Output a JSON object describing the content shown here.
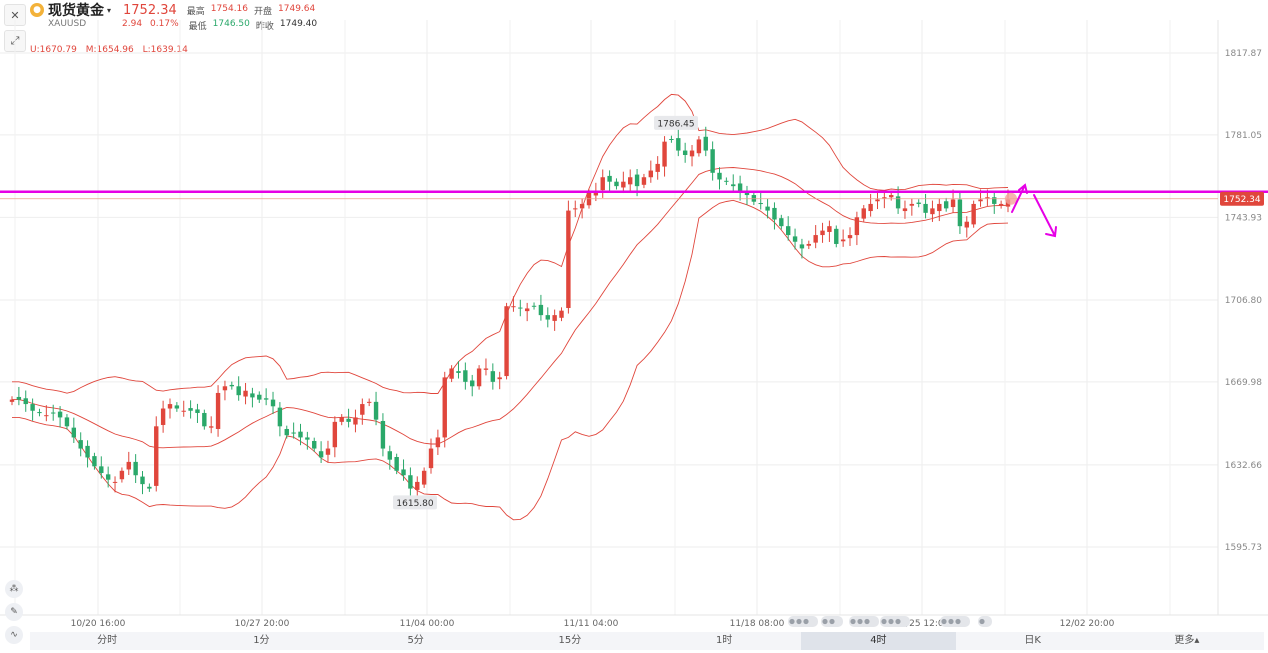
{
  "header": {
    "name": "现货黄金",
    "caret": "▾",
    "symbol": "XAUUSD",
    "price": "1752.34",
    "change": "2.94",
    "change_pct": "0.17%",
    "high_label": "最高",
    "high": "1754.16",
    "open_label": "开盘",
    "open": "1749.64",
    "low_label": "最低",
    "low": "1746.50",
    "prev_label": "昨收",
    "prev": "1749.40"
  },
  "boll": {
    "u": "U:1670.79",
    "m": "M:1654.96",
    "l": "L:1639.14"
  },
  "tabs": [
    "分时",
    "1分",
    "5分",
    "15分",
    "1时",
    "4时",
    "日K",
    "更多▴"
  ],
  "active_tab": "4时",
  "colors": {
    "up": "#e0463c",
    "down": "#2aa86a",
    "band": "#e0463c",
    "marker": "#e600e6"
  },
  "chart_data": {
    "type": "candlestick",
    "y_ticks": [
      "1817.87",
      "1781.05",
      "1743.93",
      "1706.80",
      "1669.98",
      "1632.66",
      "1595.73"
    ],
    "x_ticks": [
      "10/20 16:00",
      "10/27 20:00",
      "11/04 00:00",
      "11/11 04:00",
      "11/18 08:00",
      "11/25 12:00",
      "12/02 20:00"
    ],
    "last_price": "1752.34",
    "high_annotation": "1786.45",
    "low_annotation": "1615.80",
    "horizontal_line": 1755.5,
    "closes": [
      1662,
      1662,
      1660,
      1657,
      1656,
      1655,
      1656,
      1654,
      1650,
      1645,
      1640,
      1636,
      1632,
      1629,
      1626,
      1625,
      1630,
      1634,
      1628,
      1624,
      1622,
      1650,
      1658,
      1660,
      1658,
      1657,
      1657,
      1656,
      1650,
      1650,
      1665,
      1668,
      1668,
      1664,
      1666,
      1663,
      1662,
      1662,
      1659,
      1650,
      1646,
      1647,
      1645,
      1644,
      1640,
      1636,
      1640,
      1652,
      1654,
      1652,
      1654,
      1660,
      1661,
      1653,
      1640,
      1635,
      1630,
      1628,
      1622,
      1625,
      1630,
      1640,
      1645,
      1672,
      1676,
      1674,
      1670,
      1668,
      1676,
      1676,
      1670,
      1672,
      1704,
      1704,
      1703,
      1703,
      1704,
      1700,
      1698,
      1700,
      1702,
      1747,
      1748,
      1750,
      1755,
      1755,
      1762,
      1760,
      1758,
      1760,
      1762,
      1758,
      1762,
      1765,
      1768,
      1778,
      1779,
      1774,
      1772,
      1774,
      1779,
      1774,
      1764,
      1761,
      1760,
      1758,
      1755,
      1754,
      1751,
      1750,
      1747,
      1743,
      1740,
      1736,
      1733,
      1730,
      1732,
      1736,
      1738,
      1740,
      1732,
      1734,
      1736,
      1744,
      1748,
      1750,
      1752,
      1753,
      1754,
      1748,
      1748,
      1750,
      1750,
      1746,
      1748,
      1750,
      1748,
      1752,
      1740,
      1742,
      1750,
      1752,
      1753,
      1750,
      1750,
      1752
    ]
  }
}
